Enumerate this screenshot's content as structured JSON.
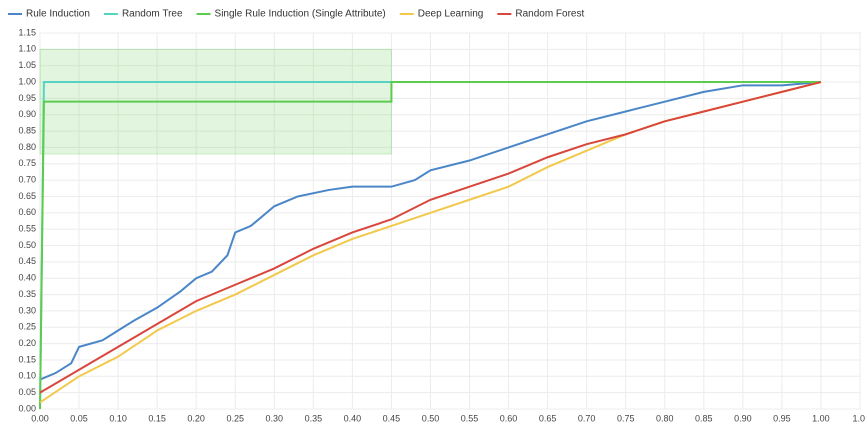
{
  "chart_data": {
    "type": "line",
    "legend": "top-left",
    "grid": true,
    "xlim": [
      0,
      1.05
    ],
    "ylim": [
      0,
      1.15
    ],
    "xticks": [
      {
        "value": 0,
        "label": "0.00"
      },
      {
        "value": 0.05,
        "label": "0.05"
      },
      {
        "value": 0.1,
        "label": "0.10"
      },
      {
        "value": 0.15,
        "label": "0.15"
      },
      {
        "value": 0.2,
        "label": "0.20"
      },
      {
        "value": 0.25,
        "label": "0.25"
      },
      {
        "value": 0.3,
        "label": "0.30"
      },
      {
        "value": 0.35,
        "label": "0.35"
      },
      {
        "value": 0.4,
        "label": "0.40"
      },
      {
        "value": 0.45,
        "label": "0.45"
      },
      {
        "value": 0.5,
        "label": "0.50"
      },
      {
        "value": 0.55,
        "label": "0.55"
      },
      {
        "value": 0.6,
        "label": "0.60"
      },
      {
        "value": 0.65,
        "label": "0.65"
      },
      {
        "value": 0.7,
        "label": "0.70"
      },
      {
        "value": 0.75,
        "label": "0.75"
      },
      {
        "value": 0.8,
        "label": "0.80"
      },
      {
        "value": 0.85,
        "label": "0.85"
      },
      {
        "value": 0.9,
        "label": "0.90"
      },
      {
        "value": 0.95,
        "label": "0.95"
      },
      {
        "value": 1,
        "label": "1.00"
      },
      {
        "value": 1.05,
        "label": "1.0"
      }
    ],
    "yticks": [
      {
        "value": 0,
        "label": "0.00"
      },
      {
        "value": 0.05,
        "label": "0.05"
      },
      {
        "value": 0.1,
        "label": "0.10"
      },
      {
        "value": 0.15,
        "label": "0.15"
      },
      {
        "value": 0.2,
        "label": "0.20"
      },
      {
        "value": 0.25,
        "label": "0.25"
      },
      {
        "value": 0.3,
        "label": "0.30"
      },
      {
        "value": 0.35,
        "label": "0.35"
      },
      {
        "value": 0.4,
        "label": "0.40"
      },
      {
        "value": 0.45,
        "label": "0.45"
      },
      {
        "value": 0.5,
        "label": "0.50"
      },
      {
        "value": 0.55,
        "label": "0.55"
      },
      {
        "value": 0.6,
        "label": "0.60"
      },
      {
        "value": 0.65,
        "label": "0.65"
      },
      {
        "value": 0.7,
        "label": "0.70"
      },
      {
        "value": 0.75,
        "label": "0.75"
      },
      {
        "value": 0.8,
        "label": "0.80"
      },
      {
        "value": 0.85,
        "label": "0.85"
      },
      {
        "value": 0.9,
        "label": "0.90"
      },
      {
        "value": 0.95,
        "label": "0.95"
      },
      {
        "value": 1,
        "label": "1.00"
      },
      {
        "value": 1.05,
        "label": "1.05"
      },
      {
        "value": 1.1,
        "label": "1.10"
      },
      {
        "value": 1.15,
        "label": "1.15"
      }
    ],
    "series": [
      {
        "name": "Rule Induction",
        "color": "#4a86c8",
        "x": [
          0,
          0.02,
          0.04,
          0.05,
          0.08,
          0.1,
          0.12,
          0.15,
          0.18,
          0.2,
          0.22,
          0.24,
          0.25,
          0.27,
          0.3,
          0.33,
          0.37,
          0.4,
          0.45,
          0.48,
          0.5,
          0.55,
          0.6,
          0.65,
          0.7,
          0.75,
          0.8,
          0.85,
          0.9,
          0.95,
          1
        ],
        "values": [
          0.09,
          0.11,
          0.14,
          0.19,
          0.21,
          0.24,
          0.27,
          0.31,
          0.36,
          0.4,
          0.42,
          0.47,
          0.54,
          0.56,
          0.62,
          0.65,
          0.67,
          0.68,
          0.68,
          0.7,
          0.73,
          0.76,
          0.8,
          0.84,
          0.88,
          0.91,
          0.94,
          0.97,
          0.99,
          0.99,
          1
        ]
      },
      {
        "name": "Random Tree",
        "color": "#56d3c3",
        "x": [
          0,
          0.005,
          1
        ],
        "values": [
          0,
          1,
          1
        ]
      },
      {
        "name": "Single Rule Induction (Single Attribute)",
        "color": "#5ccb4f",
        "x": [
          0,
          0.005,
          0.45,
          0.45,
          1
        ],
        "values": [
          0,
          0.94,
          0.94,
          1,
          1
        ],
        "band_x": [
          0,
          0.45
        ],
        "band_lower": [
          0.78,
          0.78
        ],
        "band_upper": [
          1.1,
          1.1
        ]
      },
      {
        "name": "Deep Learning",
        "color": "#f2c94c",
        "x": [
          0,
          0.05,
          0.1,
          0.15,
          0.2,
          0.25,
          0.3,
          0.35,
          0.4,
          0.45,
          0.5,
          0.55,
          0.6,
          0.65,
          0.7,
          0.75,
          0.8,
          0.85,
          0.9,
          0.95,
          1
        ],
        "values": [
          0.02,
          0.1,
          0.16,
          0.24,
          0.3,
          0.35,
          0.41,
          0.47,
          0.52,
          0.56,
          0.6,
          0.64,
          0.68,
          0.74,
          0.79,
          0.84,
          0.88,
          0.91,
          0.94,
          0.97,
          1
        ]
      },
      {
        "name": "Random Forest",
        "color": "#d9463b",
        "x": [
          0,
          0.05,
          0.1,
          0.15,
          0.2,
          0.25,
          0.3,
          0.35,
          0.4,
          0.45,
          0.5,
          0.55,
          0.6,
          0.65,
          0.7,
          0.75,
          0.8,
          0.85,
          0.9,
          0.95,
          1
        ],
        "values": [
          0.05,
          0.12,
          0.19,
          0.26,
          0.33,
          0.38,
          0.43,
          0.49,
          0.54,
          0.58,
          0.64,
          0.68,
          0.72,
          0.77,
          0.81,
          0.84,
          0.88,
          0.91,
          0.94,
          0.97,
          1
        ]
      }
    ]
  }
}
